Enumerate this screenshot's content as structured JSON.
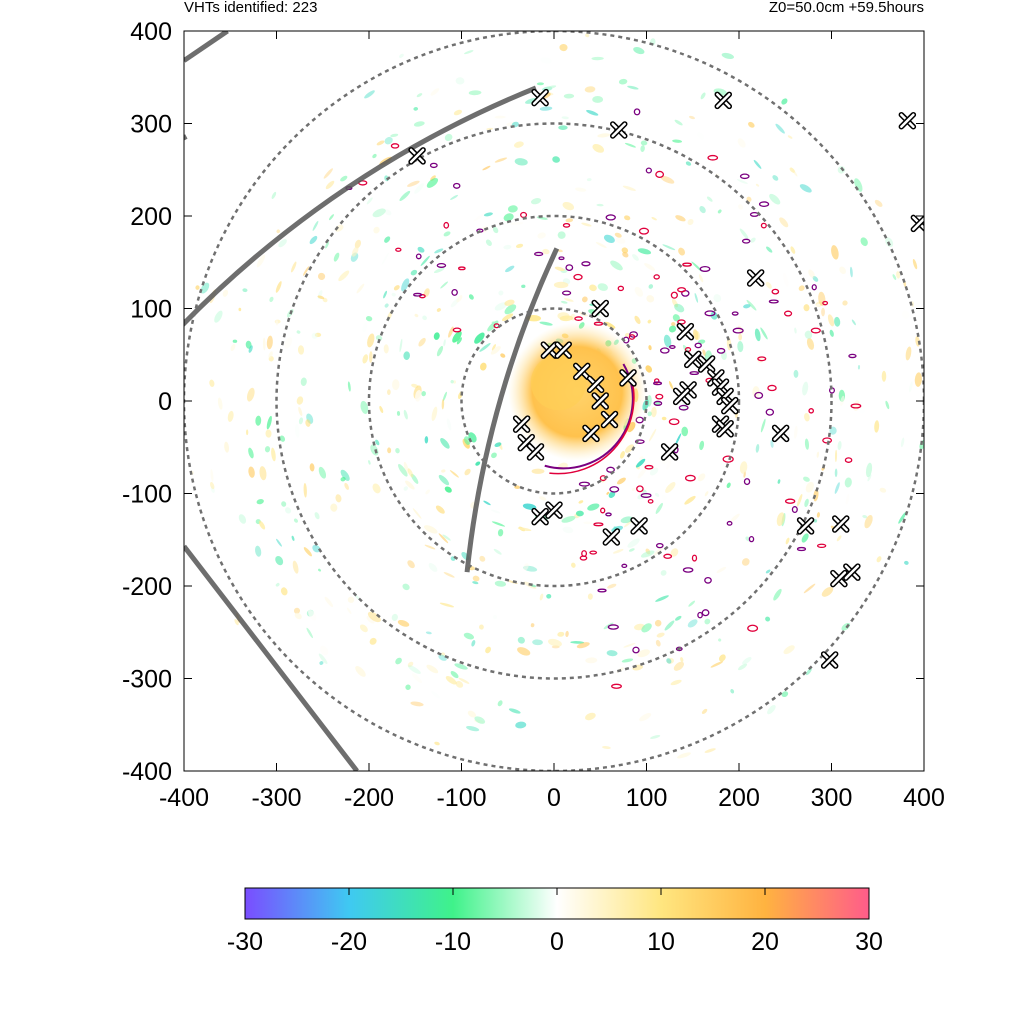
{
  "header": {
    "left_text": "VHTs identified: 223",
    "right_text": "Z0=50.0cm  +59.5hours"
  },
  "chart_data": {
    "type": "heatmap",
    "title": "",
    "xlabel": "",
    "ylabel": "",
    "xlim": [
      -400,
      400
    ],
    "ylim": [
      -400,
      400
    ],
    "x_ticks": [
      "-400",
      "-300",
      "-200",
      "-100",
      "0",
      "100",
      "200",
      "300",
      "400"
    ],
    "y_ticks": [
      "400",
      "300",
      "200",
      "100",
      "0",
      "-100",
      "-200",
      "-300",
      "-400"
    ],
    "range_rings_radius": [
      100,
      200,
      300,
      400
    ],
    "colorbar": {
      "min": -30,
      "max": 30,
      "ticks": [
        "-30",
        "-20",
        "-10",
        "0",
        "10",
        "20",
        "30"
      ],
      "stops": [
        {
          "value": -30,
          "color": "#7a4dff"
        },
        {
          "value": -20,
          "color": "#3fc9f2"
        },
        {
          "value": -10,
          "color": "#3ff28a"
        },
        {
          "value": 0,
          "color": "#ffffff"
        },
        {
          "value": 10,
          "color": "#ffe680"
        },
        {
          "value": 20,
          "color": "#ffb340"
        },
        {
          "value": 30,
          "color": "#ff5c8a"
        }
      ]
    },
    "warm_core": {
      "x": 25,
      "y": 10,
      "r": 65,
      "value": 20
    },
    "vht_markers": [
      [
        -15,
        328
      ],
      [
        70,
        293
      ],
      [
        183,
        325
      ],
      [
        -148,
        265
      ],
      [
        382,
        303
      ],
      [
        395,
        192
      ],
      [
        218,
        133
      ],
      [
        50,
        100
      ],
      [
        142,
        75
      ],
      [
        30,
        32
      ],
      [
        45,
        18
      ],
      [
        80,
        25
      ],
      [
        50,
        0
      ],
      [
        60,
        -20
      ],
      [
        40,
        -35
      ],
      [
        -5,
        55
      ],
      [
        10,
        55
      ],
      [
        -35,
        -25
      ],
      [
        -30,
        -45
      ],
      [
        -20,
        -55
      ],
      [
        150,
        45
      ],
      [
        165,
        40
      ],
      [
        175,
        25
      ],
      [
        180,
        15
      ],
      [
        185,
        5
      ],
      [
        190,
        -5
      ],
      [
        145,
        12
      ],
      [
        138,
        5
      ],
      [
        180,
        -25
      ],
      [
        185,
        -30
      ],
      [
        245,
        -35
      ],
      [
        125,
        -55
      ],
      [
        -15,
        -125
      ],
      [
        0,
        -118
      ],
      [
        62,
        -147
      ],
      [
        92,
        -135
      ],
      [
        272,
        -135
      ],
      [
        310,
        -133
      ],
      [
        308,
        -192
      ],
      [
        322,
        -185
      ],
      [
        298,
        -280
      ]
    ],
    "arcs": [
      {
        "cx": 180,
        "cy": -800,
        "r": 1230,
        "deg_from": 118,
        "deg_to": 133,
        "width": 5
      },
      {
        "cx": 400,
        "cy": -700,
        "r": 1120,
        "deg_from": 112,
        "deg_to": 140,
        "width": 5
      },
      {
        "cx": 1000,
        "cy": -300,
        "r": 1100,
        "deg_from": 155,
        "deg_to": 174,
        "width": 5
      }
    ],
    "lines": [
      {
        "x1": -400,
        "y1": -157,
        "x2": -213,
        "y2": -400,
        "width": 5
      },
      {
        "x1": -400,
        "y1": 368,
        "x2": -353,
        "y2": 400,
        "width": 5
      }
    ]
  }
}
